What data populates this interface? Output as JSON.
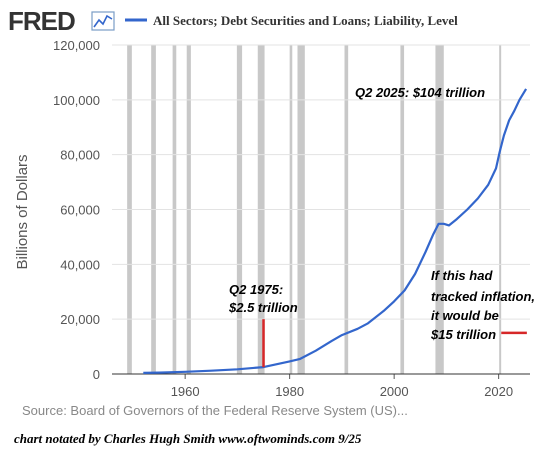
{
  "header": {
    "logo": "FRED",
    "series_title": "All Sectors; Debt Securities and Loans; Liability, Level",
    "line_color": "#3366cc"
  },
  "chart_data": {
    "type": "line",
    "ylabel": "Billions of Dollars",
    "xlim": [
      1946,
      2026
    ],
    "ylim": [
      0,
      120000
    ],
    "y_ticks": [
      {
        "value": 0,
        "label": "0"
      },
      {
        "value": 20000,
        "label": "20,000"
      },
      {
        "value": 40000,
        "label": "40,000"
      },
      {
        "value": 60000,
        "label": "60,000"
      },
      {
        "value": 80000,
        "label": "80,000"
      },
      {
        "value": 100000,
        "label": "100,000"
      },
      {
        "value": 120000,
        "label": "120,000"
      }
    ],
    "x_ticks": [
      {
        "value": 1960,
        "label": "1960"
      },
      {
        "value": 1980,
        "label": "1980"
      },
      {
        "value": 2000,
        "label": "2000"
      },
      {
        "value": 2020,
        "label": "2020"
      }
    ],
    "recessions": [
      [
        1948.9,
        1949.8
      ],
      [
        1953.5,
        1954.4
      ],
      [
        1957.6,
        1958.3
      ],
      [
        1960.3,
        1961.1
      ],
      [
        1969.9,
        1970.9
      ],
      [
        1973.9,
        1975.2
      ],
      [
        1980.0,
        1980.5
      ],
      [
        1981.5,
        1982.9
      ],
      [
        1990.5,
        1991.2
      ],
      [
        2001.2,
        2001.9
      ],
      [
        2007.9,
        2009.5
      ],
      [
        2020.1,
        2020.4
      ]
    ],
    "grid": "horizontal",
    "series": [
      {
        "x": [
          1952,
          1955,
          1960,
          1965,
          1970,
          1975,
          1980,
          1982,
          1985,
          1988,
          1990,
          1993,
          1995,
          1998,
          2000,
          2002,
          2004,
          2006,
          2007.5,
          2008.5,
          2009.5,
          2010.5,
          2012,
          2014,
          2016,
          2018,
          2019.5,
          2020.2,
          2021,
          2022,
          2023,
          2024,
          2025.25
        ],
        "y": [
          400,
          520,
          800,
          1200,
          1700,
          2500,
          4600,
          5500,
          8500,
          12000,
          14200,
          16500,
          18500,
          23000,
          26500,
          30500,
          36500,
          44500,
          51000,
          54800,
          54800,
          54200,
          56500,
          60000,
          64000,
          69000,
          75000,
          81000,
          87000,
          92500,
          96000,
          100000,
          104000
        ]
      }
    ],
    "annotations": [
      {
        "id": "q2_2025",
        "text": "Q2 2025: $104 trillion"
      },
      {
        "id": "q2_1975_line1",
        "text": "Q2 1975:"
      },
      {
        "id": "q2_1975_line2",
        "text": "$2.5 trillion"
      },
      {
        "id": "inflation_1",
        "text": "If this had"
      },
      {
        "id": "inflation_2",
        "text": "tracked inflation,"
      },
      {
        "id": "inflation_3",
        "text": "it would be"
      },
      {
        "id": "inflation_4",
        "text": "$15 trillion"
      }
    ],
    "marker_1975": {
      "x": 1975,
      "y_from": 2500,
      "y_to": 20000,
      "color": "#d62728"
    },
    "marker_15t": {
      "x_from": 2020.5,
      "x_to": 2025.4,
      "y": 15000,
      "color": "#d62728"
    }
  },
  "footer": {
    "source": "Source: Board of Governors of the Federal Reserve System (US)...",
    "credit": "chart notated by Charles Hugh Smith     www.oftwominds.com     9/25"
  }
}
